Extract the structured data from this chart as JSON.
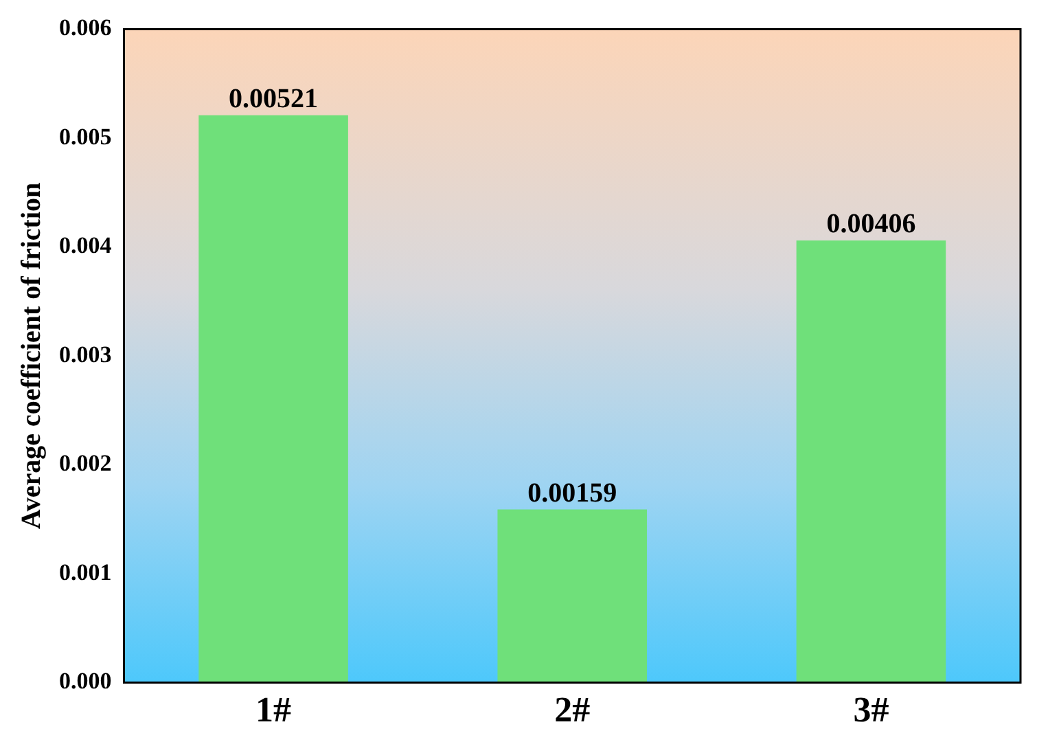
{
  "chart_data": {
    "type": "bar",
    "ylabel": "Average coefficient of friction",
    "categories": [
      "1#",
      "2#",
      "3#"
    ],
    "values": [
      0.00521,
      0.00159,
      0.00406
    ],
    "color": "#6fe07a",
    "ylim": [
      0,
      0.006
    ],
    "yticks": [
      {
        "value": 0,
        "label": "0.000"
      },
      {
        "value": 0.001,
        "label": "0.001"
      },
      {
        "value": 0.002,
        "label": "0.002"
      },
      {
        "value": 0.003,
        "label": "0.003"
      },
      {
        "value": 0.004,
        "label": "0.004"
      },
      {
        "value": 0.005,
        "label": "0.005"
      },
      {
        "value": 0.006,
        "label": "0.006"
      }
    ],
    "data_labels": true,
    "grid": false,
    "legend": false
  }
}
